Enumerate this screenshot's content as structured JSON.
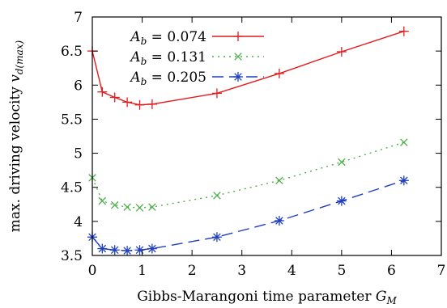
{
  "chart_data": {
    "type": "line",
    "xlabel": "Gibbs-Marangoni time parameter G_M",
    "xlabel_main": "Gibbs-Marangoni time parameter ",
    "xlabel_sym": "G",
    "xlabel_sub": "M",
    "ylabel": "max. driving velocity v_d(max)",
    "ylabel_main": "max. driving velocity ",
    "ylabel_sym": "v",
    "ylabel_sub": "d(max)",
    "xlim": [
      0,
      7
    ],
    "ylim": [
      3.5,
      7
    ],
    "xticks": [
      "0",
      "1",
      "2",
      "3",
      "4",
      "5",
      "6",
      "7"
    ],
    "yticks": [
      "3.5",
      "4",
      "4.5",
      "5",
      "5.5",
      "6",
      "6.5",
      "7"
    ],
    "grid": false,
    "legend_position": "top-left",
    "series": [
      {
        "name": "A_b = 0.074",
        "name_sym": "A",
        "name_sub": "b",
        "name_val": " = 0.074",
        "color": "#e41a1c",
        "dash": "solid",
        "marker": "plus",
        "x": [
          0,
          0.2,
          0.45,
          0.7,
          0.95,
          1.2,
          2.5,
          3.75,
          5.0,
          6.25
        ],
        "y": [
          6.5,
          5.9,
          5.82,
          5.75,
          5.71,
          5.72,
          5.88,
          6.17,
          6.49,
          6.79
        ]
      },
      {
        "name": "A_b = 0.131",
        "name_sym": "A",
        "name_sub": "b",
        "name_val": " = 0.131",
        "color": "#4daf4a",
        "dash": "dotted",
        "marker": "cross",
        "x": [
          0,
          0.2,
          0.45,
          0.7,
          0.95,
          1.2,
          2.5,
          3.75,
          5.0,
          6.25
        ],
        "y": [
          4.64,
          4.3,
          4.24,
          4.21,
          4.2,
          4.21,
          4.38,
          4.6,
          4.87,
          5.16
        ]
      },
      {
        "name": "A_b = 0.205",
        "name_sym": "A",
        "name_sub": "b",
        "name_val": " = 0.205",
        "color": "#1f3fbf",
        "dash": "longdash",
        "marker": "star",
        "x": [
          0,
          0.2,
          0.45,
          0.7,
          0.95,
          1.2,
          2.5,
          3.75,
          5.0,
          6.25
        ],
        "y": [
          3.77,
          3.6,
          3.58,
          3.57,
          3.58,
          3.6,
          3.77,
          4.01,
          4.3,
          4.6
        ]
      }
    ]
  }
}
